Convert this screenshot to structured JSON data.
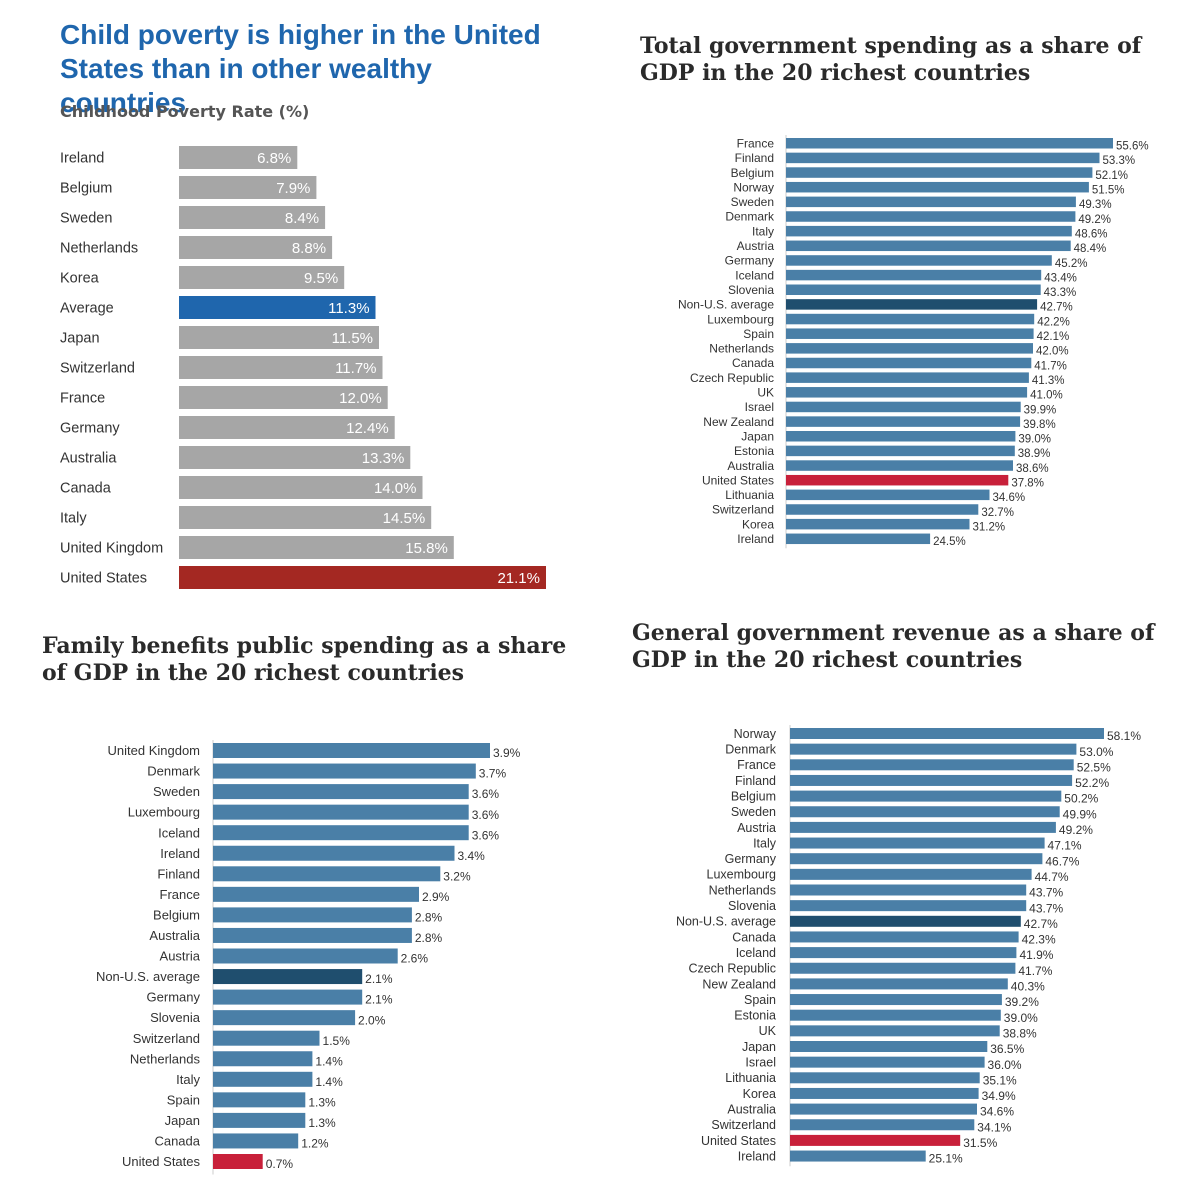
{
  "chart_data": [
    {
      "type": "bar",
      "orientation": "horizontal",
      "title": "Child poverty is higher in the United States than in other wealthy countries",
      "subtitle": "Childhood Poverty Rate (%)",
      "categories": [
        "Ireland",
        "Belgium",
        "Sweden",
        "Netherlands",
        "Korea",
        "Average",
        "Japan",
        "Switzerland",
        "France",
        "Germany",
        "Australia",
        "Canada",
        "Italy",
        "United Kingdom",
        "United States"
      ],
      "values": [
        6.8,
        7.9,
        8.4,
        8.8,
        9.5,
        11.3,
        11.5,
        11.7,
        12.0,
        12.4,
        13.3,
        14.0,
        14.5,
        15.8,
        21.1
      ],
      "labels": [
        "6.8%",
        "7.9%",
        "8.4%",
        "8.8%",
        "9.5%",
        "11.3%",
        "11.5%",
        "11.7%",
        "12.0%",
        "12.4%",
        "13.3%",
        "14.0%",
        "14.5%",
        "15.8%",
        "21.1%"
      ],
      "highlights": {
        "Average": "#1f66ad",
        "United States": "#a42822"
      },
      "default_color": "#a6a6a6",
      "xlim": [
        0,
        21.1
      ]
    },
    {
      "type": "bar",
      "orientation": "horizontal",
      "title": "Total government spending as a share of GDP in the 20 richest countries",
      "categories": [
        "France",
        "Finland",
        "Belgium",
        "Norway",
        "Sweden",
        "Denmark",
        "Italy",
        "Austria",
        "Germany",
        "Iceland",
        "Slovenia",
        "Non-U.S. average",
        "Luxembourg",
        "Spain",
        "Netherlands",
        "Canada",
        "Czech Republic",
        "UK",
        "Israel",
        "New Zealand",
        "Japan",
        "Estonia",
        "Australia",
        "United States",
        "Lithuania",
        "Switzerland",
        "Korea",
        "Ireland"
      ],
      "values": [
        55.6,
        53.3,
        52.1,
        51.5,
        49.3,
        49.2,
        48.6,
        48.4,
        45.2,
        43.4,
        43.3,
        42.7,
        42.2,
        42.1,
        42.0,
        41.7,
        41.3,
        41.0,
        39.9,
        39.8,
        39.0,
        38.9,
        38.6,
        37.8,
        34.6,
        32.7,
        31.2,
        24.5
      ],
      "labels": [
        "55.6%",
        "53.3%",
        "52.1%",
        "51.5%",
        "49.3%",
        "49.2%",
        "48.6%",
        "48.4%",
        "45.2%",
        "43.4%",
        "43.3%",
        "42.7%",
        "42.2%",
        "42.1%",
        "42.0%",
        "41.7%",
        "41.3%",
        "41.0%",
        "39.9%",
        "39.8%",
        "39.0%",
        "38.9%",
        "38.6%",
        "37.8%",
        "34.6%",
        "32.7%",
        "31.2%",
        "24.5%"
      ],
      "highlights": {
        "Non-U.S. average": "#1f4e6e",
        "United States": "#c8203a"
      },
      "default_color": "#4a7fa7",
      "xlim": [
        0,
        55.6
      ]
    },
    {
      "type": "bar",
      "orientation": "horizontal",
      "title": "Family benefits public spending as a share of GDP in the 20 richest countries",
      "categories": [
        "United Kingdom",
        "Denmark",
        "Sweden",
        "Luxembourg",
        "Iceland",
        "Ireland",
        "Finland",
        "France",
        "Belgium",
        "Australia",
        "Austria",
        "Non-U.S. average",
        "Germany",
        "Slovenia",
        "Switzerland",
        "Netherlands",
        "Italy",
        "Spain",
        "Japan",
        "Canada",
        "United States"
      ],
      "values": [
        3.9,
        3.7,
        3.6,
        3.6,
        3.6,
        3.4,
        3.2,
        2.9,
        2.8,
        2.8,
        2.6,
        2.1,
        2.1,
        2.0,
        1.5,
        1.4,
        1.4,
        1.3,
        1.3,
        1.2,
        0.7
      ],
      "labels": [
        "3.9%",
        "3.7%",
        "3.6%",
        "3.6%",
        "3.6%",
        "3.4%",
        "3.2%",
        "2.9%",
        "2.8%",
        "2.8%",
        "2.6%",
        "2.1%",
        "2.1%",
        "2.0%",
        "1.5%",
        "1.4%",
        "1.4%",
        "1.3%",
        "1.3%",
        "1.2%",
        "0.7%"
      ],
      "highlights": {
        "Non-U.S. average": "#1f4e6e",
        "United States": "#c8203a"
      },
      "default_color": "#4a7fa7",
      "xlim": [
        0,
        3.9
      ]
    },
    {
      "type": "bar",
      "orientation": "horizontal",
      "title": "General government revenue as a share of GDP in the 20 richest countries",
      "categories": [
        "Norway",
        "Denmark",
        "France",
        "Finland",
        "Belgium",
        "Sweden",
        "Austria",
        "Italy",
        "Germany",
        "Luxembourg",
        "Netherlands",
        "Slovenia",
        "Non-U.S. average",
        "Canada",
        "Iceland",
        "Czech Republic",
        "New Zealand",
        "Spain",
        "Estonia",
        "UK",
        "Japan",
        "Israel",
        "Lithuania",
        "Korea",
        "Australia",
        "Switzerland",
        "United States",
        "Ireland"
      ],
      "values": [
        58.1,
        53.0,
        52.5,
        52.2,
        50.2,
        49.9,
        49.2,
        47.1,
        46.7,
        44.7,
        43.7,
        43.7,
        42.7,
        42.3,
        41.9,
        41.7,
        40.3,
        39.2,
        39.0,
        38.8,
        36.5,
        36.0,
        35.1,
        34.9,
        34.6,
        34.1,
        31.5,
        25.1
      ],
      "labels": [
        "58.1%",
        "53.0%",
        "52.5%",
        "52.2%",
        "50.2%",
        "49.9%",
        "49.2%",
        "47.1%",
        "46.7%",
        "44.7%",
        "43.7%",
        "43.7%",
        "42.7%",
        "42.3%",
        "41.9%",
        "41.7%",
        "40.3%",
        "39.2%",
        "39.0%",
        "38.8%",
        "36.5%",
        "36.0%",
        "35.1%",
        "34.9%",
        "34.6%",
        "34.1%",
        "31.5%",
        "25.1%"
      ],
      "highlights": {
        "Non-U.S. average": "#1f4e6e",
        "United States": "#c8203a"
      },
      "default_color": "#4a7fa7",
      "xlim": [
        0,
        58.1
      ]
    }
  ]
}
